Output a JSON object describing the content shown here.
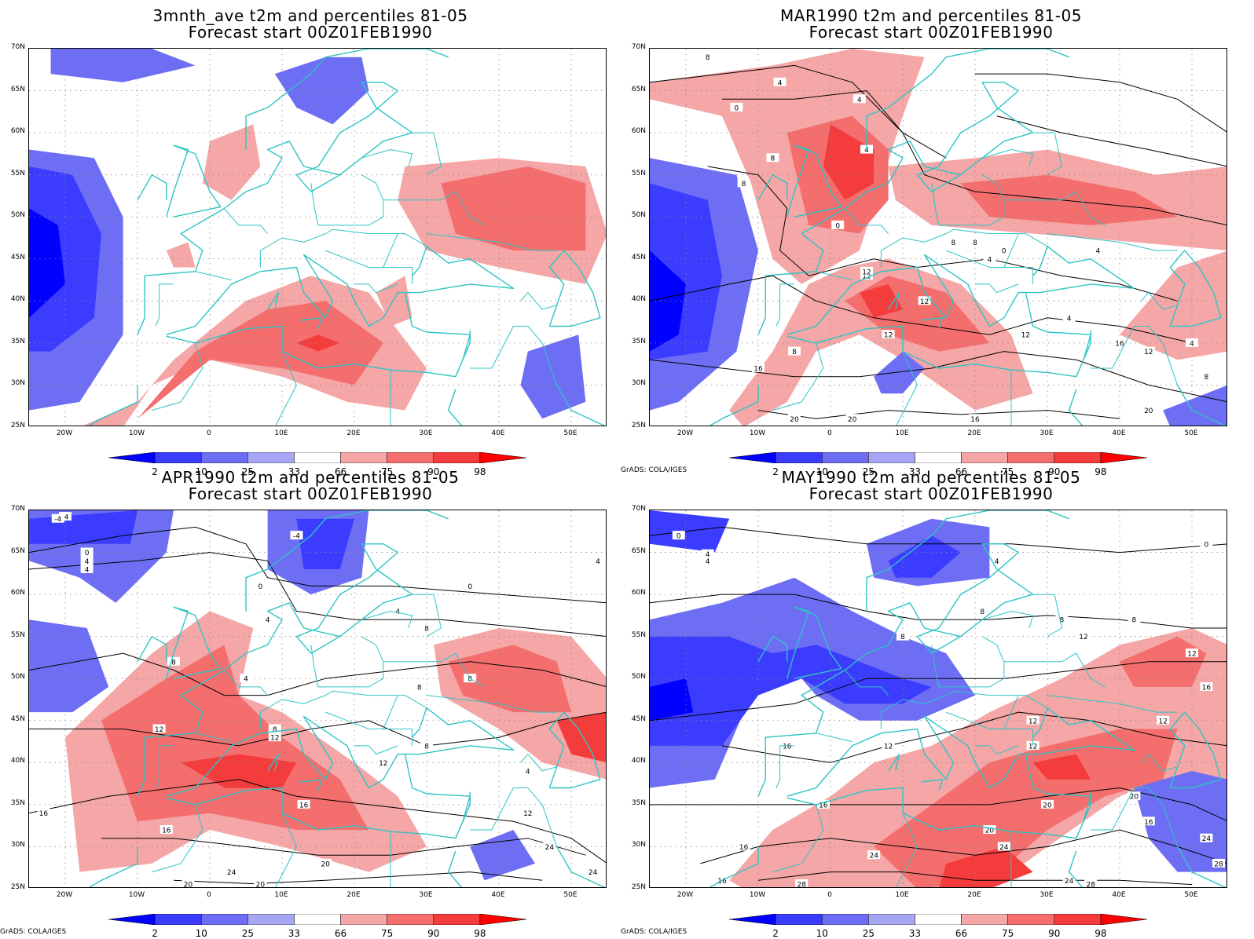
{
  "panels": [
    {
      "id": "p1",
      "title_line1": "3mnth_ave t2m and percentiles 81-05",
      "title_line2": "Forecast start 00Z01FEB1990",
      "credit": "",
      "contours": false
    },
    {
      "id": "p2",
      "title_line1": "MAR1990 t2m and percentiles 81-05",
      "title_line2": "Forecast start 00Z01FEB1990",
      "credit": "GrADS: COLA/IGES",
      "contours": true
    },
    {
      "id": "p3",
      "title_line1": "APR1990 t2m and percentiles 81-05",
      "title_line2": "Forecast start 00Z01FEB1990",
      "credit": "GrADS: COLA/IGES",
      "contours": true
    },
    {
      "id": "p4",
      "title_line1": "MAY1990 t2m and percentiles 81-05",
      "title_line2": "Forecast start 00Z01FEB1990",
      "credit": "GrADS: COLA/IGES",
      "contours": true
    }
  ],
  "axes": {
    "lat_labels": [
      "70N",
      "65N",
      "60N",
      "55N",
      "50N",
      "45N",
      "40N",
      "35N",
      "30N",
      "25N"
    ],
    "lon_labels": [
      "20W",
      "10W",
      "0",
      "10E",
      "20E",
      "30E",
      "40E",
      "50E"
    ]
  },
  "colorbar": {
    "labels": [
      "2",
      "10",
      "25",
      "33",
      "66",
      "75",
      "90",
      "98"
    ],
    "colors": [
      "#0000ff",
      "#3c3cff",
      "#6e6ef5",
      "#a6a6f5",
      "#ffffff",
      "#f5a6a6",
      "#f56e6e",
      "#f53c3c",
      "#ff0000"
    ]
  },
  "colors": {
    "coast": "#2ec4c4",
    "contour": "#000000"
  },
  "contour_labels": {
    "p2": [
      "8",
      "4",
      "0",
      "8",
      "4",
      "4",
      "8",
      "0",
      "8",
      "12",
      "8",
      "12",
      "4",
      "0",
      "4",
      "12",
      "12",
      "8",
      "4",
      "12",
      "16",
      "16",
      "12",
      "4",
      "8",
      "20",
      "20",
      "16",
      "20"
    ],
    "p3": [
      "-4",
      "-4",
      "0",
      "4",
      "4",
      "-4",
      "0",
      "0",
      "4",
      "4",
      "8",
      "8",
      "4",
      "8",
      "12",
      "8",
      "8",
      "12",
      "12",
      "16",
      "16",
      "16",
      "20",
      "24",
      "20",
      "20",
      "12",
      "24",
      "24",
      "4",
      "8",
      "4"
    ],
    "p4": [
      "0",
      "0",
      "4",
      "4",
      "4",
      "8",
      "8",
      "8",
      "8",
      "12",
      "12",
      "16",
      "12",
      "12",
      "16",
      "16",
      "12",
      "12",
      "16",
      "20",
      "20",
      "24",
      "24",
      "24",
      "28",
      "28",
      "16",
      "20",
      "16",
      "28",
      "24"
    ]
  }
}
